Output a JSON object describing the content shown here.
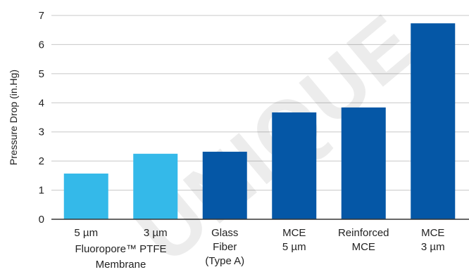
{
  "chart_data": {
    "type": "bar",
    "title": "",
    "xlabel": "",
    "ylabel": "Pressure Drop (in.Hg)",
    "ylim": [
      0,
      7
    ],
    "yticks": [
      "0",
      "1",
      "2",
      "3",
      "4",
      "5",
      "6",
      "7"
    ],
    "grid": true,
    "legend": "none",
    "categories": [
      [
        "5 µm"
      ],
      [
        "3 µm"
      ],
      [
        "Glass",
        "Fiber",
        "(Type A)"
      ],
      [
        "MCE",
        "5 µm"
      ],
      [
        "Reinforced",
        "MCE"
      ],
      [
        "MCE",
        "3 µm"
      ]
    ],
    "values": [
      1.57,
      2.25,
      2.32,
      3.67,
      3.84,
      6.73
    ],
    "bar_colors": [
      "#34b9e9",
      "#34b9e9",
      "#0557a6",
      "#0557a6",
      "#0557a6",
      "#0557a6"
    ],
    "group_label": [
      "Fluoropore™ PTFE",
      "Membrane"
    ],
    "watermark": "UNIQUE"
  },
  "colors": {
    "light_bar": "#34b9e9",
    "dark_bar": "#0557a6",
    "gridline": "#c8c8c8",
    "axis": "#333333",
    "text": "#222222"
  }
}
